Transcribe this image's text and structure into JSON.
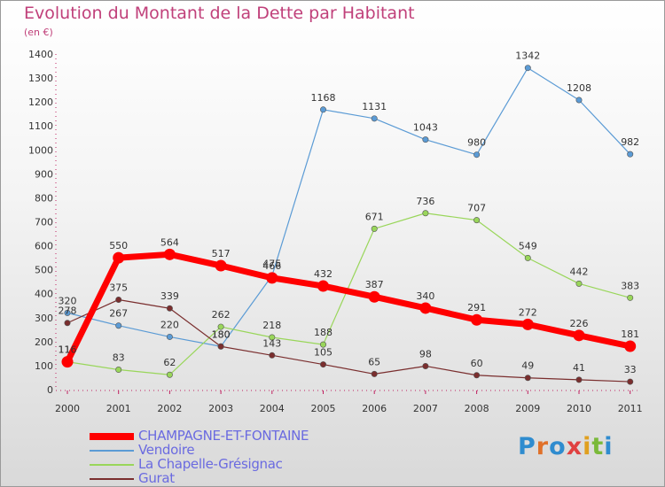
{
  "title": "Evolution du Montant de la Dette par Habitant",
  "subtitle": "(en €)",
  "logo": "Proxiti",
  "chart_data": {
    "type": "line",
    "x": [
      "2000",
      "2001",
      "2002",
      "2003",
      "2004",
      "2005",
      "2006",
      "2007",
      "2008",
      "2009",
      "2010",
      "2011"
    ],
    "ylim": [
      0,
      1400
    ],
    "yticks": [
      0,
      100,
      200,
      300,
      400,
      500,
      600,
      700,
      800,
      900,
      1000,
      1100,
      1200,
      1300,
      1400
    ],
    "grid": false,
    "legend": "bottom-left",
    "series": [
      {
        "name": "Vendoire",
        "color": "#5b9bd5",
        "values": [
          320,
          267,
          220,
          180,
          475,
          1168,
          1131,
          1043,
          980,
          1342,
          1208,
          982
        ]
      },
      {
        "name": "La Chapelle-Grésignac",
        "color": "#99d65a",
        "values": [
          116,
          83,
          62,
          262,
          218,
          188,
          671,
          736,
          707,
          549,
          442,
          383
        ]
      },
      {
        "name": "Gurat",
        "color": "#7a2e2e",
        "values": [
          278,
          375,
          339,
          180,
          143,
          105,
          65,
          98,
          60,
          49,
          41,
          33
        ]
      },
      {
        "name": "CHAMPAGNE-ET-FONTAINE",
        "color": "#ff0000",
        "values": [
          116,
          550,
          564,
          517,
          466,
          432,
          387,
          340,
          291,
          272,
          226,
          181
        ]
      }
    ],
    "legend_order": [
      "CHAMPAGNE-ET-FONTAINE",
      "Vendoire",
      "La Chapelle-Grésignac",
      "Gurat"
    ]
  }
}
